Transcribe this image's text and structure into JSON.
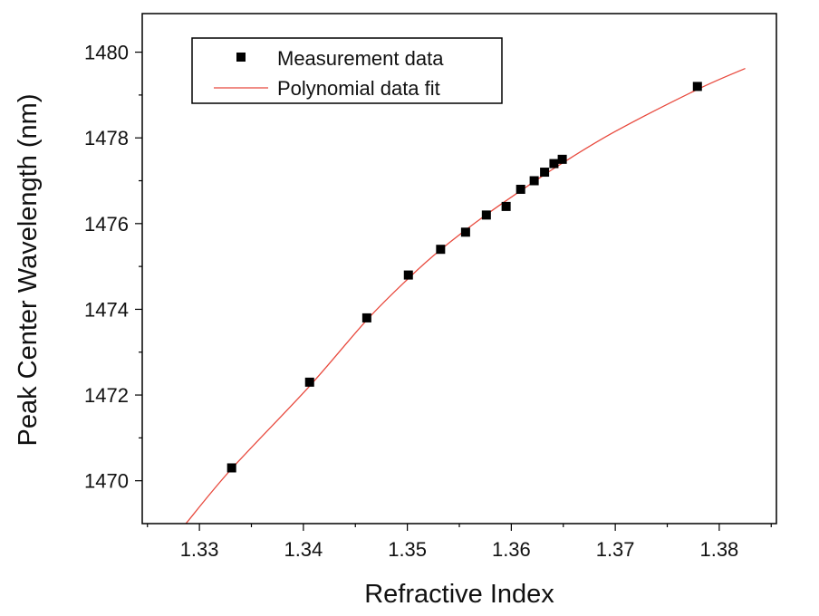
{
  "chart_data": {
    "type": "scatter",
    "title": "",
    "xlabel": "Refractive Index",
    "ylabel": "Peak Center Wavelength (nm)",
    "xlim": [
      1.3245,
      1.3855
    ],
    "ylim": [
      1469.0,
      1480.9
    ],
    "xticks": [
      "1.33",
      "1.34",
      "1.35",
      "1.36",
      "1.37",
      "1.38"
    ],
    "yticks": [
      "1470",
      "1472",
      "1474",
      "1476",
      "1478",
      "1480"
    ],
    "grid": false,
    "legend_position": "top-left",
    "series": [
      {
        "name": "Measurement data",
        "kind": "scatter",
        "marker": "square",
        "color": "#000000",
        "x": [
          1.3331,
          1.3406,
          1.3461,
          1.3501,
          1.3532,
          1.3556,
          1.3576,
          1.3595,
          1.3609,
          1.3622,
          1.3632,
          1.3641,
          1.3649,
          1.3779
        ],
        "y": [
          1470.3,
          1472.3,
          1473.8,
          1474.8,
          1475.4,
          1475.8,
          1476.2,
          1476.4,
          1476.8,
          1477.0,
          1477.2,
          1477.4,
          1477.5,
          1479.2
        ]
      },
      {
        "name": "Polynomial data fit",
        "kind": "line",
        "color": "#e8493d",
        "x": [
          1.3287,
          1.3331,
          1.3406,
          1.3461,
          1.3501,
          1.3532,
          1.3576,
          1.3622,
          1.3649,
          1.37,
          1.3779,
          1.3825
        ],
        "y": [
          1469.0,
          1470.28,
          1472.21,
          1473.75,
          1474.72,
          1475.39,
          1476.21,
          1476.98,
          1477.41,
          1478.15,
          1479.13,
          1479.62
        ]
      }
    ]
  }
}
